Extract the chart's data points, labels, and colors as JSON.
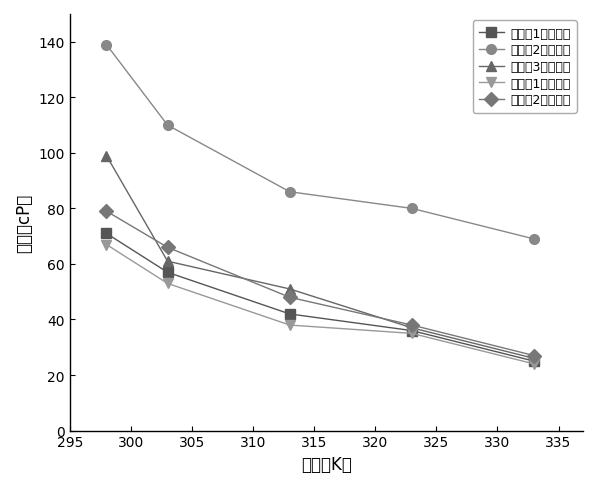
{
  "x_values": [
    298,
    303,
    313,
    323,
    333
  ],
  "series": [
    {
      "label": "实施例1制备材料",
      "values": [
        71,
        57,
        42,
        36,
        25
      ],
      "marker": "s",
      "color": "#555555",
      "markercolor": "#555555"
    },
    {
      "label": "对比例2制备材料",
      "values": [
        139,
        110,
        86,
        80,
        69
      ],
      "marker": "o",
      "color": "#888888",
      "markercolor": "#888888"
    },
    {
      "label": "对比例3制备材料",
      "values": [
        99,
        61,
        51,
        37,
        26
      ],
      "marker": "^",
      "color": "#666666",
      "markercolor": "#666666"
    },
    {
      "label": "对比例1制备材料",
      "values": [
        67,
        53,
        38,
        35,
        24
      ],
      "marker": "v",
      "color": "#999999",
      "markercolor": "#999999"
    },
    {
      "label": "实施例2制备材料",
      "values": [
        79,
        66,
        48,
        38,
        27
      ],
      "marker": "D",
      "color": "#777777",
      "markercolor": "#777777"
    }
  ],
  "xlabel": "温度（K）",
  "ylabel": "粘度（cP）",
  "xlim": [
    295,
    337
  ],
  "ylim": [
    0,
    150
  ],
  "xticks": [
    295,
    300,
    305,
    310,
    315,
    320,
    325,
    330,
    335
  ],
  "yticks": [
    0,
    20,
    40,
    60,
    80,
    100,
    120,
    140
  ],
  "background_color": "#ffffff",
  "line_color": "#aaaaaa",
  "line_width": 1.0,
  "marker_size": 7
}
